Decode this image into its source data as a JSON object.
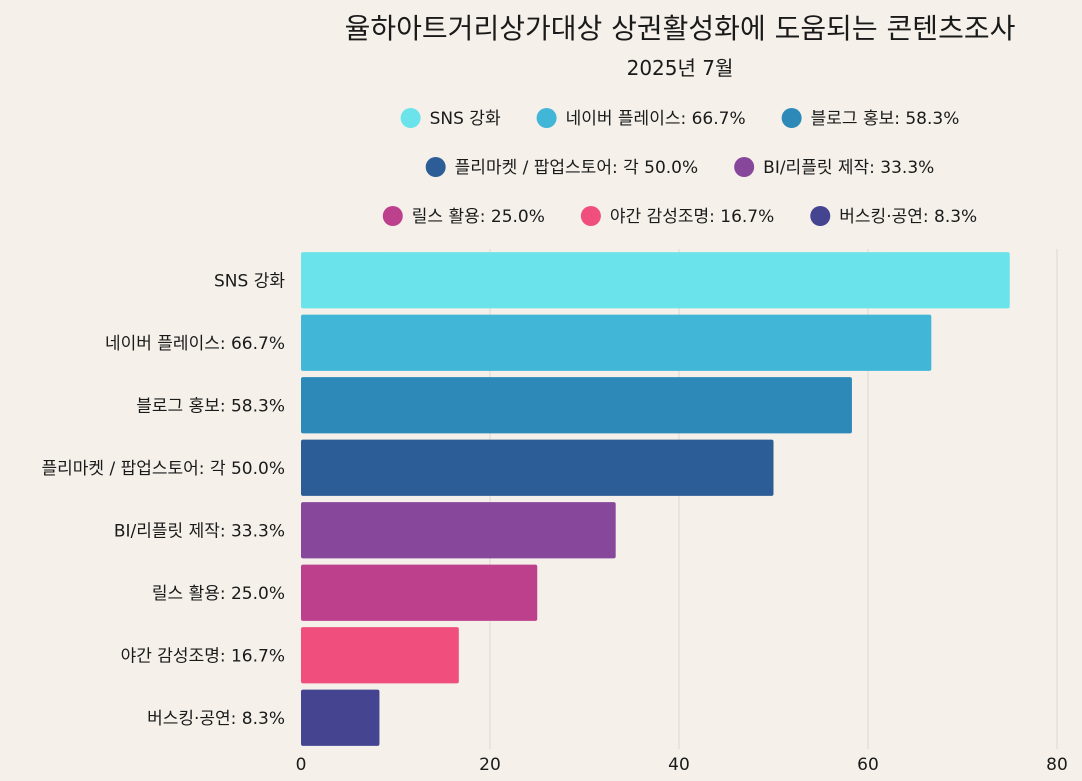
{
  "chart_data": {
    "type": "bar",
    "orientation": "horizontal",
    "title": "율하아트거리상가대상 상권활성화에 도움되는 콘텐츠조사",
    "subtitle": "2025년 7월",
    "categories": [
      "SNS 강화",
      "네이버 플레이스: 66.7%",
      "블로그 홍보: 58.3%",
      "플리마켓 / 팝업스토어: 각 50.0%",
      "BI/리플릿 제작: 33.3%",
      "릴스 활용: 25.0%",
      "야간 감성조명: 16.7%",
      "버스킹·공연: 8.3%"
    ],
    "values": [
      75,
      66.7,
      58.3,
      50,
      33.3,
      25,
      16.7,
      8.3
    ],
    "colors": [
      "#6ae4ea",
      "#42b6d6",
      "#2d8ab8",
      "#2d5d96",
      "#87479a",
      "#bd408c",
      "#f04f7e",
      "#444491"
    ],
    "legend_rows": [
      [
        0,
        1,
        2
      ],
      [
        3,
        4
      ],
      [
        5,
        6,
        7
      ]
    ],
    "legend_position": "top",
    "xlim": [
      0,
      80
    ],
    "xticks": [
      0,
      20,
      40,
      60,
      80
    ],
    "grid": true,
    "xlabel": "",
    "ylabel": ""
  }
}
